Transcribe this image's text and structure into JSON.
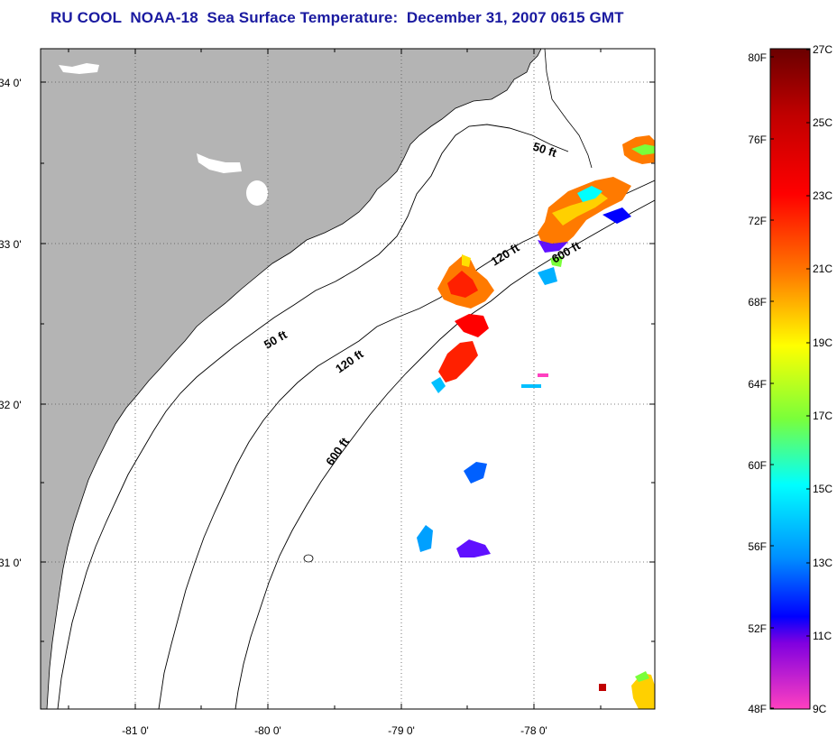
{
  "title": "RU COOL  NOAA-18  Sea Surface Temperature:  December 31, 2007 0615 GMT",
  "map": {
    "lon_labels": [
      "-81 0'",
      "-80 0'",
      "-79 0'",
      "-78 0'"
    ],
    "lat_labels": [
      "34 0'",
      "33 0'",
      "32 0'",
      "31 0'"
    ],
    "contour_labels": {
      "c50_north": "50 ft",
      "c50_south": "50 ft",
      "c120_north": "120 ft",
      "c120_south": "120 ft",
      "c600_north": "600 ft",
      "c600_south": "600 ft"
    },
    "land_color": "#b4b4b4",
    "water_color": "#ffffff"
  },
  "colorbar": {
    "fahrenheit_labels": [
      "80F",
      "76F",
      "72F",
      "68F",
      "64F",
      "60F",
      "56F",
      "52F",
      "48F"
    ],
    "celsius_labels": [
      "27C",
      "25C",
      "23C",
      "21C",
      "19C",
      "17C",
      "15C",
      "13C",
      "11C",
      "9C"
    ],
    "gradient_colors": [
      "#7a0000",
      "#ff0000",
      "#ff7a00",
      "#ffff00",
      "#7aff3a",
      "#00ffff",
      "#0080ff",
      "#0000ff",
      "#8000ff",
      "#ff40c0"
    ]
  }
}
